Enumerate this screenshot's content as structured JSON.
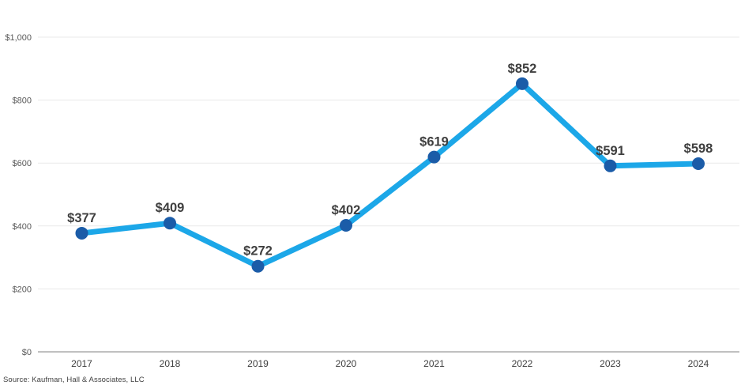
{
  "chart_data": {
    "type": "line",
    "title": "",
    "xlabel": "",
    "ylabel": "",
    "categories": [
      "2017",
      "2018",
      "2019",
      "2020",
      "2021",
      "2022",
      "2023",
      "2024"
    ],
    "series": [
      {
        "name": "value",
        "values": [
          377,
          409,
          272,
          402,
          619,
          852,
          591,
          598
        ],
        "data_labels": [
          "$377",
          "$409",
          "$272",
          "$402",
          "$619",
          "$852",
          "$591",
          "$598"
        ]
      }
    ],
    "ylim": [
      0,
      1000
    ],
    "ytick_interval": 200,
    "ytick_labels": [
      "$0",
      "$200",
      "$400",
      "$600",
      "$800",
      "$1,000"
    ],
    "grid": true,
    "legend_position": "none",
    "colors": {
      "line": "#1ca7e8",
      "marker": "#1b5ca8",
      "data_label": "#3f3f3f",
      "ytick_text": "#595959",
      "xtick_text": "#404040",
      "gridline": "#e9e9e9",
      "axis_line": "#808080",
      "background": "#ffffff"
    }
  },
  "source": "Source: Kaufman, Hall & Associates, LLC"
}
